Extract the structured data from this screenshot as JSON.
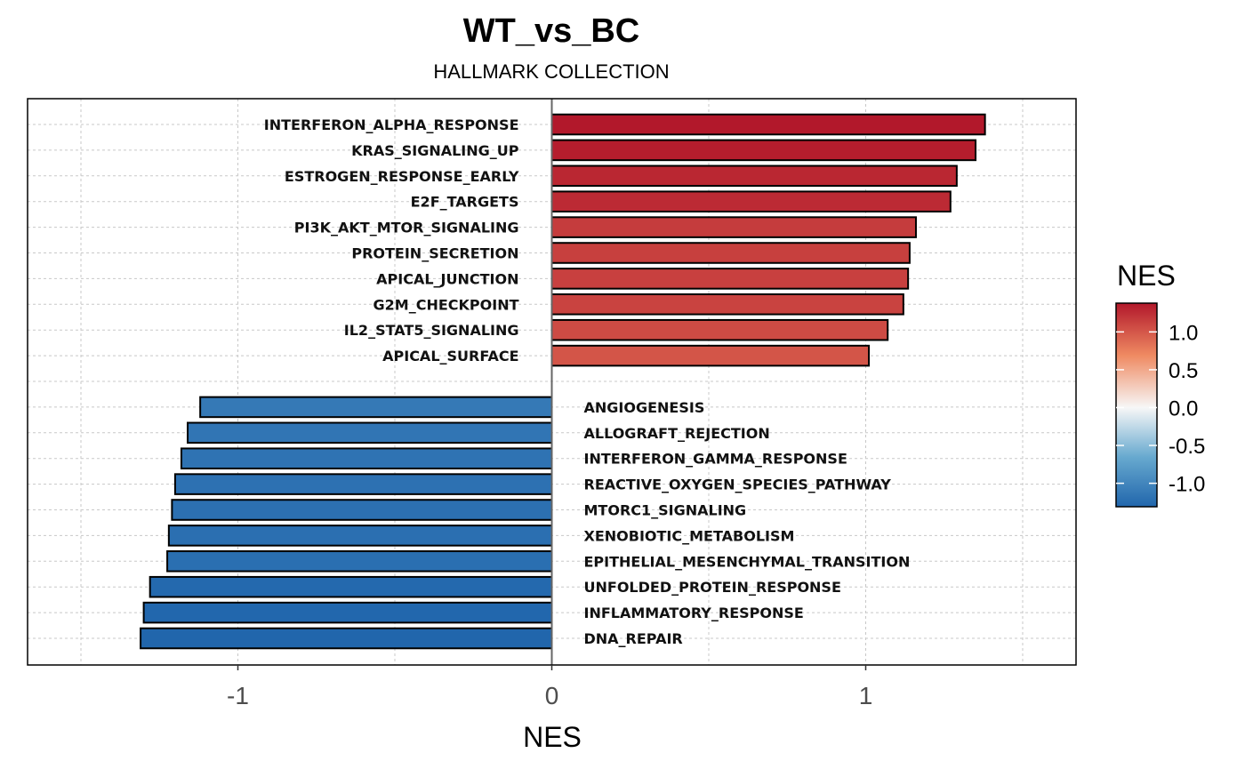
{
  "chart_data": {
    "type": "bar",
    "orientation": "horizontal",
    "title": "WT_vs_BC",
    "subtitle": "HALLMARK COLLECTION",
    "xlabel": "NES",
    "ylabel": "",
    "xlim": [
      -1.67,
      1.67
    ],
    "xticks": [
      -1,
      0,
      1
    ],
    "xtick_labels": [
      "-1",
      "0",
      "1"
    ],
    "grid": true,
    "categories": [
      "INTERFERON_ALPHA_RESPONSE",
      "KRAS_SIGNALING_UP",
      "ESTROGEN_RESPONSE_EARLY",
      "E2F_TARGETS",
      "PI3K_AKT_MTOR_SIGNALING",
      "PROTEIN_SECRETION",
      "APICAL_JUNCTION",
      "G2M_CHECKPOINT",
      "IL2_STAT5_SIGNALING",
      "APICAL_SURFACE",
      "ANGIOGENESIS",
      "ALLOGRAFT_REJECTION",
      "INTERFERON_GAMMA_RESPONSE",
      "REACTIVE_OXYGEN_SPECIES_PATHWAY",
      "MTORC1_SIGNALING",
      "XENOBIOTIC_METABOLISM",
      "EPITHELIAL_MESENCHYMAL_TRANSITION",
      "UNFOLDED_PROTEIN_RESPONSE",
      "INFLAMMATORY_RESPONSE",
      "DNA_REPAIR"
    ],
    "values": [
      1.38,
      1.35,
      1.29,
      1.27,
      1.16,
      1.14,
      1.135,
      1.12,
      1.07,
      1.01,
      -1.12,
      -1.16,
      -1.18,
      -1.2,
      -1.21,
      -1.22,
      -1.225,
      -1.28,
      -1.3,
      -1.31
    ],
    "legend": {
      "title": "NES",
      "placement": "right",
      "range": [
        -1.31,
        1.38
      ],
      "ticks": [
        1.0,
        0.5,
        0.0,
        -0.5,
        -1.0
      ],
      "tick_labels": [
        "1.0",
        "0.5",
        "0.0",
        "-0.5",
        "-1.0"
      ],
      "colors": {
        "low": "#2166AC",
        "lowmid": "#67A9CF",
        "mid": "#F7F7F7",
        "highmid": "#EF8A62",
        "high": "#B2182B"
      }
    }
  }
}
